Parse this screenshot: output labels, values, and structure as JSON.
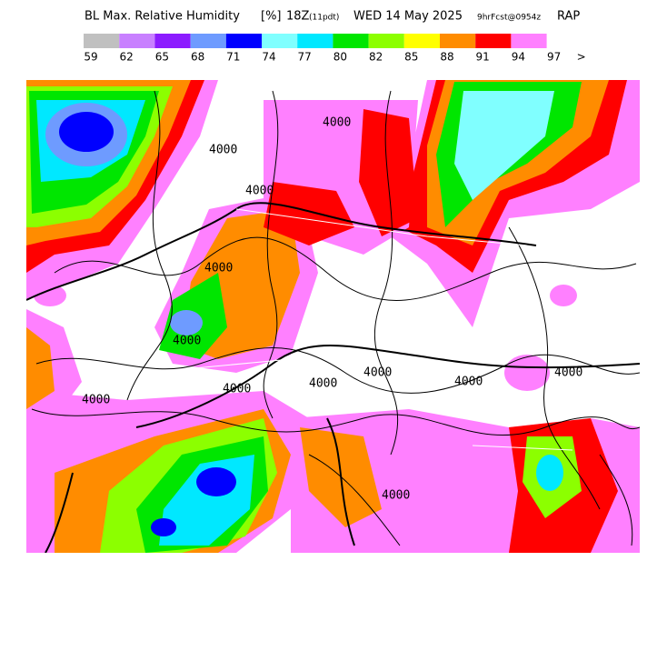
{
  "header": {
    "title": "BL Max. Relative Humidity",
    "unit": "[%]",
    "valid": "18Z",
    "local": "(11pdt)",
    "date": "WED 14 May 2025",
    "forecast": "9hrFcst@0954z",
    "model": "RAP"
  },
  "legend": {
    "labels": [
      "59",
      "62",
      "65",
      "68",
      "71",
      "74",
      "77",
      "80",
      "82",
      "85",
      "88",
      "91",
      "94",
      "97",
      ">"
    ],
    "colors": [
      "#c0c0c0",
      "#c880ff",
      "#8c1cff",
      "#6e9bff",
      "#0000ff",
      "#80ffff",
      "#00e8ff",
      "#00e600",
      "#8cff00",
      "#ffff00",
      "#ff8c00",
      "#ff0000",
      "#ff80ff"
    ]
  },
  "contour_labels": [
    "4000",
    "4000",
    "4000",
    "4000",
    "4000",
    "4000",
    "4000",
    "4000",
    "4000",
    "4000",
    "4000",
    "4000"
  ]
}
